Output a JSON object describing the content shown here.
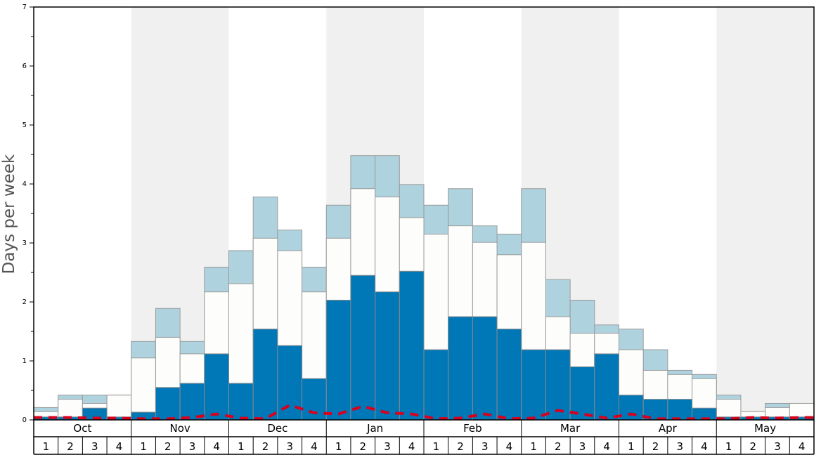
{
  "chart_data": {
    "type": "bar",
    "ylabel": "Days per week",
    "ylim": [
      0,
      7
    ],
    "y_ticks": [
      "0",
      "1",
      "2",
      "3",
      "4",
      "5",
      "6",
      "7"
    ],
    "months": [
      "Oct",
      "Nov",
      "Dec",
      "Jan",
      "Feb",
      "Mar",
      "Apr",
      "May"
    ],
    "week_labels": [
      "1",
      "2",
      "3",
      "4"
    ],
    "grid": false,
    "shaded_months": [
      "Nov",
      "Jan",
      "Mar",
      "May"
    ],
    "colors": {
      "dark": "#0077b6",
      "white": "#fdfdfc",
      "light": "#aed3df",
      "dashed_line": "#d8001f",
      "shade": "#f0f0f0"
    },
    "series": [
      {
        "values": [
          0.05,
          0.05,
          0.2,
          0.05,
          0.13,
          0.55,
          0.62,
          1.12,
          0.62,
          1.54,
          1.26,
          0.7,
          2.03,
          2.45,
          2.17,
          2.52,
          1.19,
          1.75,
          1.75,
          1.54,
          1.19,
          1.19,
          0.9,
          1.12,
          0.42,
          0.35,
          0.35,
          0.2,
          0.05,
          0.05,
          0.05,
          0.05
        ]
      },
      {
        "values": [
          0.14,
          0.35,
          0.28,
          0.42,
          1.05,
          1.4,
          1.12,
          2.17,
          2.31,
          3.08,
          2.87,
          2.17,
          3.08,
          3.92,
          3.78,
          3.43,
          3.15,
          3.29,
          3.01,
          2.8,
          3.01,
          1.75,
          1.47,
          1.47,
          1.19,
          0.84,
          0.77,
          0.7,
          0.35,
          0.14,
          0.21,
          0.28
        ]
      },
      {
        "values": [
          0.21,
          0.42,
          0.42,
          0.42,
          1.33,
          1.89,
          1.33,
          2.59,
          2.87,
          3.78,
          3.22,
          2.59,
          3.64,
          4.48,
          4.48,
          3.99,
          3.64,
          3.92,
          3.29,
          3.15,
          3.92,
          2.38,
          2.03,
          1.61,
          1.54,
          1.19,
          0.84,
          0.77,
          0.42,
          0.14,
          0.28,
          0.28
        ]
      },
      {
        "values": [
          0.04,
          0.04,
          0.03,
          0.03,
          0.02,
          0.02,
          0.04,
          0.1,
          0.03,
          0.02,
          0.25,
          0.12,
          0.1,
          0.23,
          0.12,
          0.1,
          0.02,
          0.03,
          0.1,
          0.02,
          0.03,
          0.16,
          0.1,
          0.03,
          0.1,
          0.02,
          0.02,
          0.02,
          0.02,
          0.04,
          0.03,
          0.04
        ]
      }
    ]
  }
}
